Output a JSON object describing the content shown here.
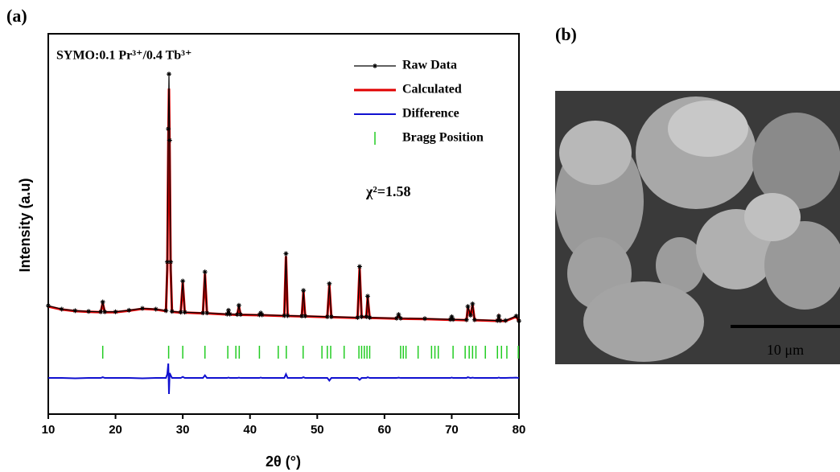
{
  "chart_data": {
    "type": "line",
    "panel_label": "(a)",
    "title": "SYMO:0.1 Pr³⁺/0.4 Tb³⁺",
    "annotation": "χ²=1.58",
    "x_label": "2θ (°)",
    "y_label": "Intensity (a.u)",
    "xlim": [
      10,
      80
    ],
    "xticks": [
      10,
      20,
      30,
      40,
      50,
      60,
      70,
      80
    ],
    "ylim": [
      0,
      100
    ],
    "legend_position": "upper right",
    "x": [
      10,
      12,
      14,
      16,
      17.8,
      18.1,
      18.4,
      20,
      22,
      24,
      26,
      27.5,
      27.7,
      27.85,
      27.95,
      28.05,
      28.2,
      28.4,
      29.7,
      30.0,
      30.3,
      33.0,
      33.3,
      33.6,
      36.6,
      36.8,
      37.0,
      38.1,
      38.35,
      38.6,
      41.4,
      41.6,
      41.8,
      45.1,
      45.35,
      45.6,
      47.7,
      47.95,
      48.2,
      51.5,
      51.8,
      52.1,
      56.0,
      56.3,
      56.6,
      57.3,
      57.5,
      57.8,
      61.8,
      62.1,
      62.4,
      66,
      69.8,
      70.0,
      70.2,
      72.2,
      72.4,
      72.8,
      73.1,
      73.4,
      76.8,
      77.0,
      77.2,
      78,
      79.6,
      80
    ],
    "series": [
      {
        "name": "Raw Data",
        "color": "#000000",
        "values": [
          28.5,
          27.6,
          27.2,
          27.0,
          26.9,
          29.5,
          26.9,
          26.9,
          27.3,
          27.8,
          27.6,
          27.2,
          40,
          75,
          89.4,
          72,
          40,
          27,
          26.8,
          35.0,
          26.8,
          26.6,
          37.4,
          26.6,
          26.3,
          27.3,
          26.3,
          26.2,
          28.6,
          26.2,
          26.1,
          26.6,
          26.1,
          25.9,
          42.2,
          25.9,
          25.8,
          32.5,
          25.8,
          25.6,
          34.3,
          25.6,
          25.4,
          38.8,
          25.6,
          25.6,
          31.0,
          25.4,
          25.2,
          26.2,
          25.2,
          25.1,
          24.9,
          25.6,
          24.9,
          24.8,
          28.3,
          26.0,
          29.0,
          24.8,
          24.6,
          25.8,
          24.6,
          24.6,
          25.8,
          24.5
        ]
      },
      {
        "name": "Calculated",
        "color": "#e00000",
        "values": [
          28.3,
          27.5,
          27.1,
          26.9,
          26.8,
          29.2,
          26.8,
          26.8,
          27.2,
          27.7,
          27.5,
          27.1,
          38,
          71,
          85.6,
          69,
          38,
          26.9,
          26.7,
          34.6,
          26.7,
          26.5,
          36.9,
          26.5,
          26.2,
          27.1,
          26.2,
          26.1,
          28.3,
          26.1,
          26.0,
          26.4,
          26.0,
          25.8,
          41.5,
          25.8,
          25.7,
          32.2,
          25.7,
          25.5,
          34.0,
          25.5,
          25.3,
          38.4,
          25.5,
          25.5,
          30.7,
          25.3,
          25.1,
          26.0,
          25.1,
          25.0,
          24.8,
          25.4,
          24.8,
          24.7,
          28.0,
          25.8,
          28.7,
          24.7,
          24.5,
          25.6,
          24.5,
          24.5,
          25.6,
          24.4
        ]
      },
      {
        "name": "Difference",
        "color": "#1010d0",
        "values": [
          9.5,
          9.5,
          9.4,
          9.5,
          9.5,
          9.7,
          9.5,
          9.5,
          9.5,
          9.4,
          9.5,
          9.5,
          10.5,
          13.3,
          5.3,
          10.8,
          10.2,
          9.5,
          9.5,
          9.8,
          9.5,
          9.5,
          10.2,
          9.5,
          9.5,
          9.6,
          9.5,
          9.5,
          9.6,
          9.5,
          9.5,
          9.6,
          9.5,
          9.5,
          10.5,
          9.5,
          9.5,
          9.7,
          9.5,
          9.5,
          8.8,
          9.5,
          9.5,
          9.0,
          9.5,
          9.5,
          9.7,
          9.5,
          9.5,
          9.6,
          9.5,
          9.5,
          9.5,
          9.6,
          9.5,
          9.5,
          9.7,
          9.5,
          9.6,
          9.5,
          9.5,
          9.6,
          9.5,
          9.5,
          9.6,
          9.5
        ]
      }
    ],
    "bragg_name": "Bragg Position",
    "bragg_color": "#22cc22",
    "bragg_positions": [
      18.1,
      27.9,
      30.0,
      33.3,
      36.7,
      37.9,
      38.4,
      41.4,
      44.2,
      45.4,
      47.9,
      50.7,
      51.5,
      52.0,
      54.0,
      56.2,
      56.6,
      57.0,
      57.4,
      57.8,
      62.4,
      62.8,
      63.2,
      65.0,
      67.0,
      67.5,
      68.0,
      70.2,
      72.0,
      72.6,
      73.1,
      73.6,
      75.0,
      76.8,
      77.4,
      78.2,
      79.9
    ]
  },
  "image_panel": {
    "panel_label": "(b)",
    "scale_bar": "10 μm"
  }
}
